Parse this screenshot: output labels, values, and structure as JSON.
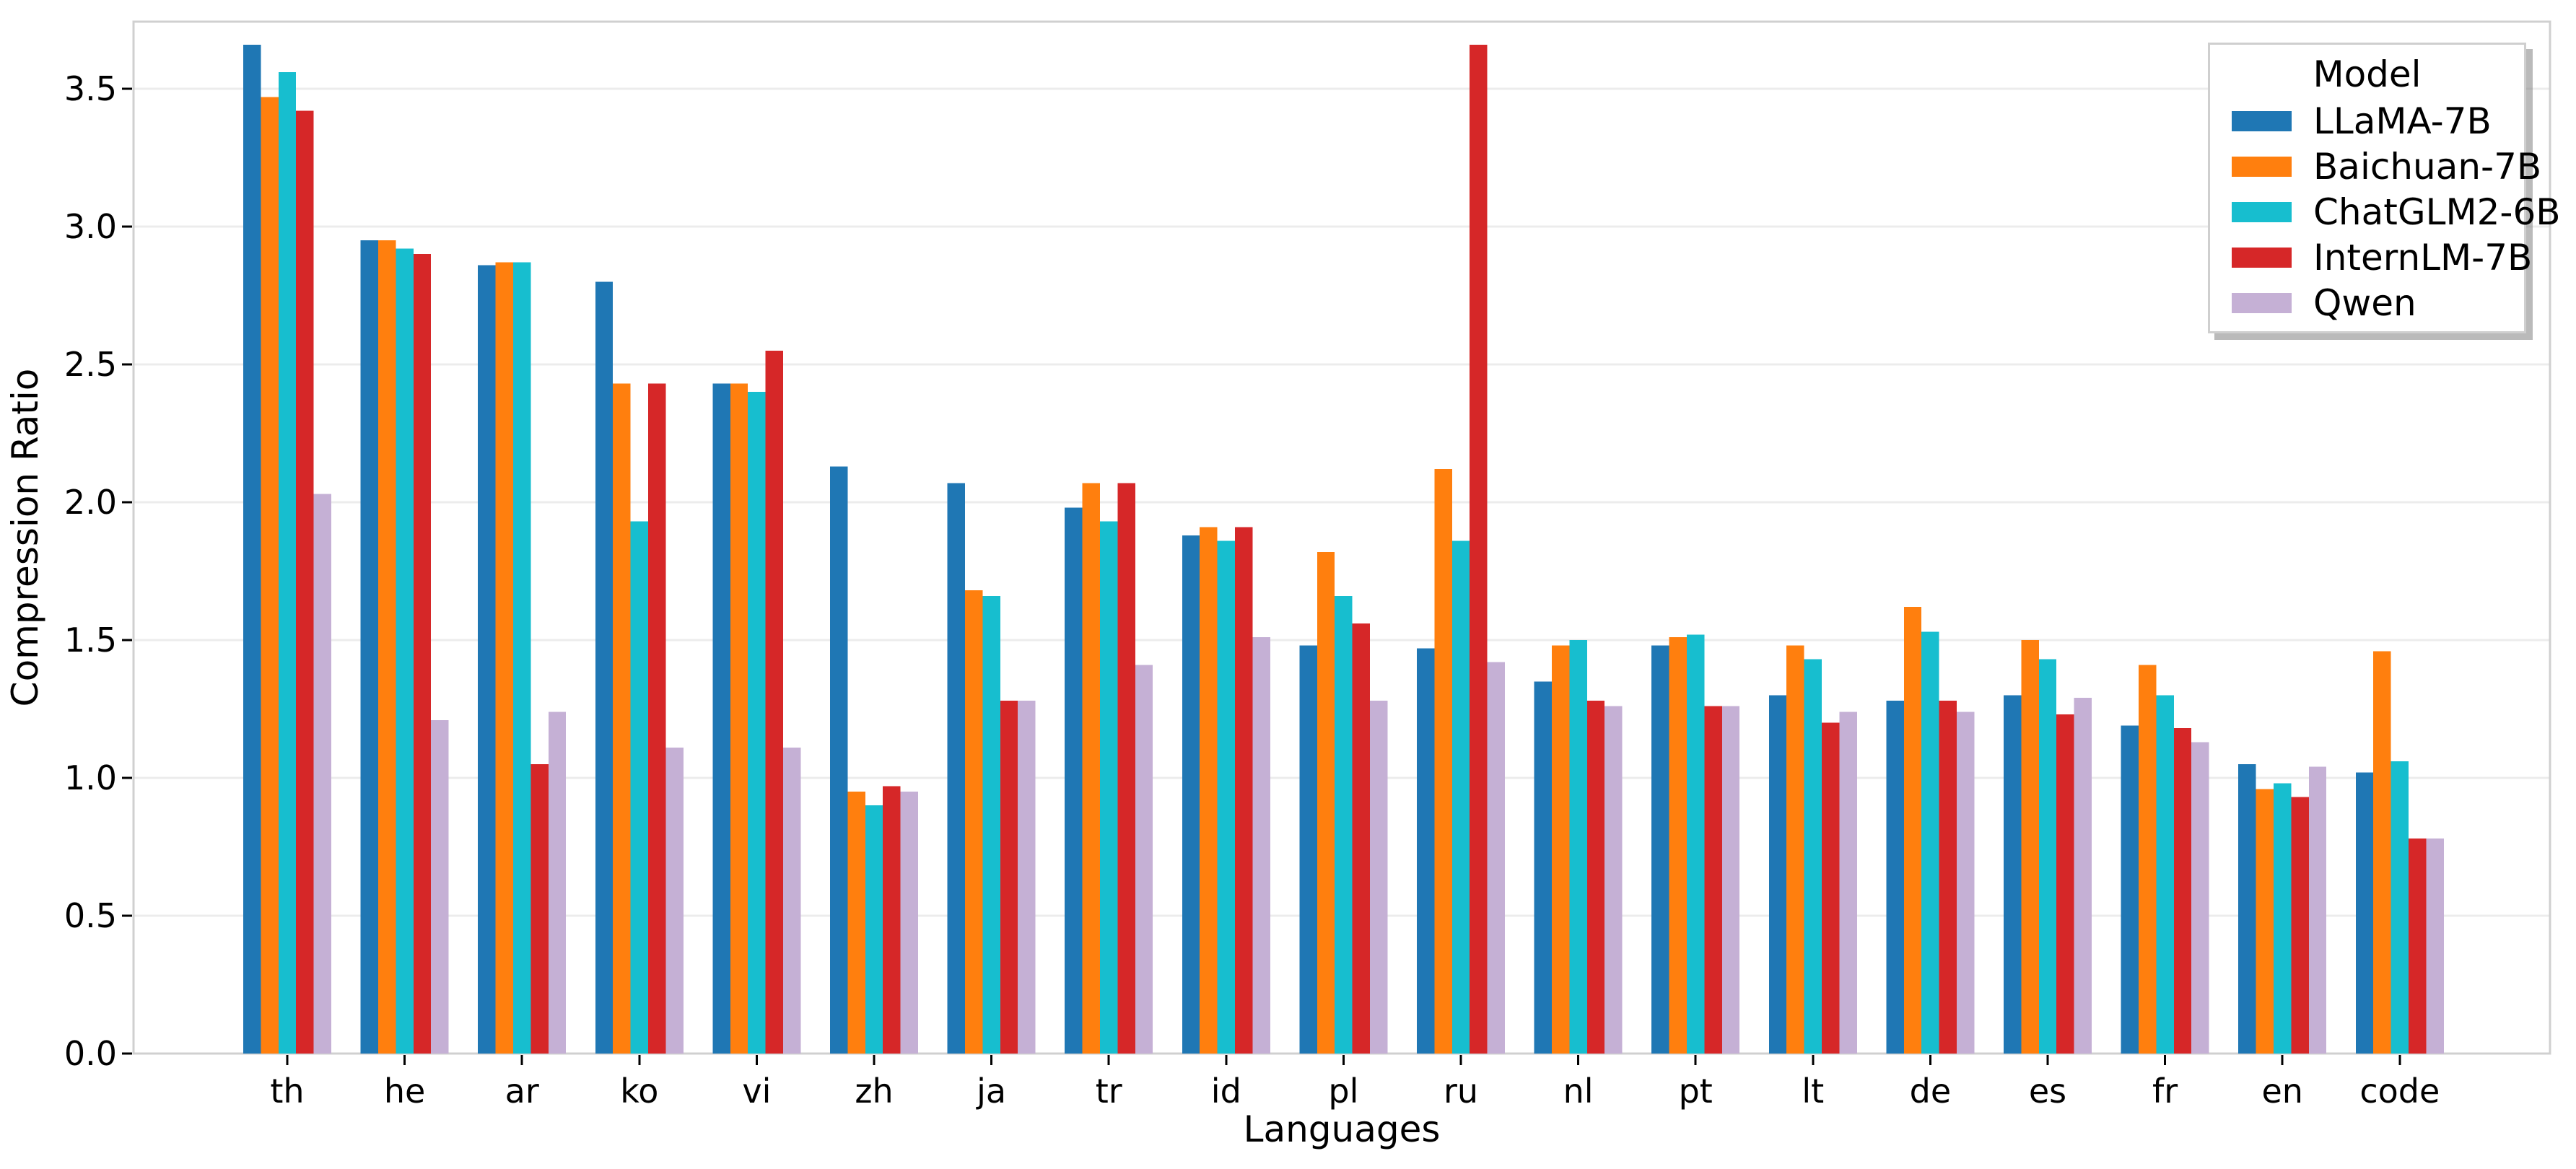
{
  "figure": {
    "background": "#ffffff"
  },
  "chart_data": {
    "type": "bar",
    "title": "",
    "xlabel": "Languages",
    "ylabel": "Compression Ratio",
    "legend_title": "Model",
    "legend_position": "upper right",
    "grid": "horizontal",
    "ylim": [
      0,
      3.74
    ],
    "yticks": [
      "0.0",
      "0.5",
      "1.0",
      "1.5",
      "2.0",
      "2.5",
      "3.0",
      "3.5"
    ],
    "categories": [
      "th",
      "he",
      "ar",
      "ko",
      "vi",
      "zh",
      "ja",
      "tr",
      "id",
      "pl",
      "ru",
      "nl",
      "pt",
      "lt",
      "de",
      "es",
      "fr",
      "en",
      "code"
    ],
    "series": [
      {
        "name": "LLaMA-7B",
        "color": "#1f77b4",
        "values": [
          3.66,
          2.95,
          2.86,
          2.8,
          2.43,
          2.13,
          2.07,
          1.98,
          1.88,
          1.48,
          1.47,
          1.35,
          1.48,
          1.3,
          1.28,
          1.3,
          1.19,
          1.05,
          1.02
        ]
      },
      {
        "name": "Baichuan-7B",
        "color": "#ff7f0e",
        "values": [
          3.47,
          2.95,
          2.87,
          2.43,
          2.43,
          0.95,
          1.68,
          2.07,
          1.91,
          1.82,
          2.12,
          1.48,
          1.51,
          1.48,
          1.62,
          1.5,
          1.41,
          0.96,
          1.46
        ]
      },
      {
        "name": "ChatGLM2-6B",
        "color": "#17becf",
        "values": [
          3.56,
          2.92,
          2.87,
          1.93,
          2.4,
          0.9,
          1.66,
          1.93,
          1.86,
          1.66,
          1.86,
          1.5,
          1.52,
          1.43,
          1.53,
          1.43,
          1.3,
          0.98,
          1.06
        ]
      },
      {
        "name": "InternLM-7B",
        "color": "#d62728",
        "values": [
          3.42,
          2.9,
          1.05,
          2.43,
          2.55,
          0.97,
          1.28,
          2.07,
          1.91,
          1.56,
          3.66,
          1.28,
          1.26,
          1.2,
          1.28,
          1.23,
          1.18,
          0.93,
          0.78
        ]
      },
      {
        "name": "Qwen",
        "color": "#c5b0d5",
        "values": [
          2.03,
          1.21,
          1.24,
          1.11,
          1.11,
          0.95,
          1.28,
          1.41,
          1.51,
          1.28,
          1.42,
          1.26,
          1.26,
          1.24,
          1.24,
          1.29,
          1.13,
          1.04,
          0.78
        ]
      }
    ],
    "style": {
      "grid_color": "#ececec",
      "spine_color": "#d0d0d0",
      "tick_color": "#000000",
      "text_color": "#000000",
      "background": "#ffffff"
    }
  }
}
